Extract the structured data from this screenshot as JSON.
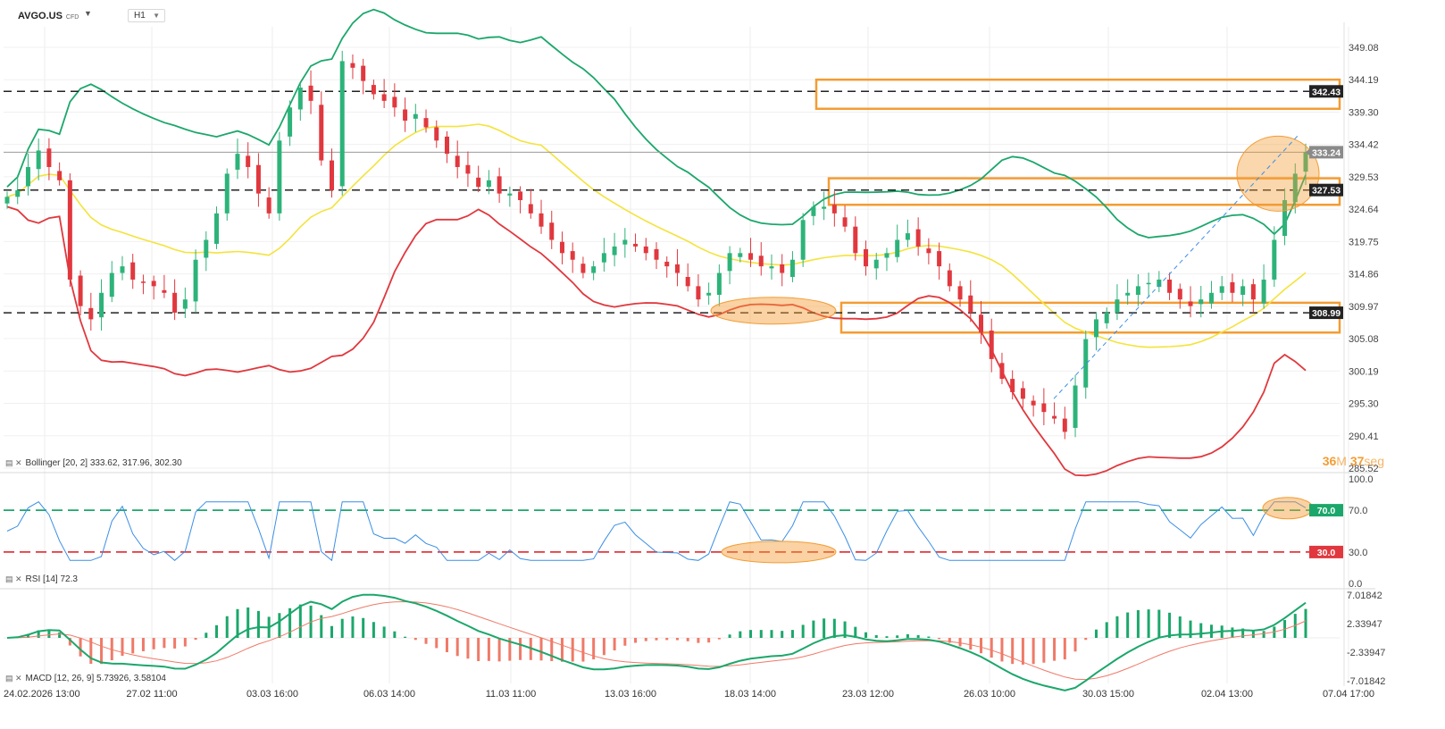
{
  "header": {
    "symbol": "AVGO.US",
    "symbol_type": "CFD",
    "timeframe": "H1"
  },
  "indicators": {
    "bollinger_label": "Bollinger [20, 2] 333.62, 317.96, 302.30",
    "rsi_label": "RSI [14] 72.3",
    "macd_label": "MACD [12, 26, 9] 5.73926, 3.58104"
  },
  "countdown": {
    "minutes": "36",
    "min_unit": "M",
    "seconds": "37",
    "sec_unit": "seg"
  },
  "colors": {
    "bull": "#2db37a",
    "bear": "#e0383e",
    "bb_upper": "#1ba76b",
    "bb_mid": "#f4e33a",
    "bb_lower": "#e0383e",
    "rsi": "#3a8ee6",
    "macd": "#1ba76b",
    "signal": "#ef7a68",
    "hist_pos": "#1ba76b",
    "hist_neg": "#ef7a68",
    "highlight": "#f39c33",
    "rsi70": "#1ba76b",
    "rsi30": "#e0383e"
  },
  "chart_data": [
    {
      "type": "candlestick",
      "name": "price",
      "y_ticks": [
        "349.08",
        "344.19",
        "339.30",
        "334.42",
        "329.53",
        "324.64",
        "319.75",
        "314.86",
        "309.97",
        "305.08",
        "300.19",
        "295.30",
        "290.41",
        "285.52"
      ],
      "ylim": [
        285.52,
        349.08
      ],
      "x_ticks": [
        "24.02.2026 13:00",
        "27.02 11:00",
        "03.03 16:00",
        "06.03 14:00",
        "11.03 11:00",
        "13.03 16:00",
        "18.03 14:00",
        "23.03 12:00",
        "26.03 10:00",
        "30.03 15:00",
        "02.04 13:00",
        "07.04 17:00"
      ],
      "last_price": "333.24",
      "levels": [
        {
          "value": 342.43,
          "label": "342.43"
        },
        {
          "value": 327.53,
          "label": "327.53"
        },
        {
          "value": 308.99,
          "label": "308.99"
        }
      ],
      "zones": [
        {
          "from": 339.8,
          "to": 344.2
        },
        {
          "from": 325.3,
          "to": 329.3
        },
        {
          "from": 306.0,
          "to": 310.5
        }
      ],
      "close_path": [
        326.5,
        327.5,
        331,
        333.5,
        331,
        329,
        314,
        310,
        308,
        312,
        315,
        316,
        314,
        313.5,
        313,
        312,
        309,
        311,
        317,
        320,
        324,
        330,
        333,
        331,
        327,
        324,
        335,
        340,
        343,
        341,
        332,
        327.5,
        347,
        346,
        344,
        342,
        341,
        340,
        338,
        339,
        337,
        335,
        333,
        331,
        330,
        328,
        329,
        327,
        327,
        326,
        324,
        322,
        320,
        318,
        317,
        315,
        316,
        318,
        319,
        320,
        319,
        318,
        317,
        316,
        315,
        313,
        311,
        312,
        315,
        318,
        318,
        317,
        316,
        316,
        315,
        317,
        323,
        325,
        325,
        324,
        322,
        318,
        316,
        317,
        318,
        320,
        321,
        319,
        318,
        316,
        313,
        311,
        309,
        306,
        302,
        299,
        297,
        296,
        295,
        294,
        293,
        291,
        298,
        305,
        308,
        309,
        311,
        312,
        313,
        313.5,
        314,
        312,
        311,
        310,
        311,
        312,
        313,
        312,
        313,
        311,
        314,
        320,
        326,
        330,
        333.24
      ],
      "bollinger": {
        "upper_last": 333.62,
        "middle_last": 317.96,
        "lower_last": 302.3
      }
    },
    {
      "type": "line",
      "name": "rsi",
      "y_ticks": [
        "100.0",
        "70.0",
        "30.0",
        "0.0"
      ],
      "ylim": [
        0,
        100
      ],
      "levels": [
        {
          "value": 70,
          "label": "70.0"
        },
        {
          "value": 30,
          "label": "30.0"
        }
      ],
      "last": 72.3
    },
    {
      "type": "line",
      "name": "macd",
      "y_ticks": [
        "7.01842",
        "2.33947",
        "-2.33947",
        "-7.01842"
      ],
      "ylim": [
        -7.01842,
        7.01842
      ],
      "macd_last": 5.73926,
      "signal_last": 3.58104
    }
  ]
}
